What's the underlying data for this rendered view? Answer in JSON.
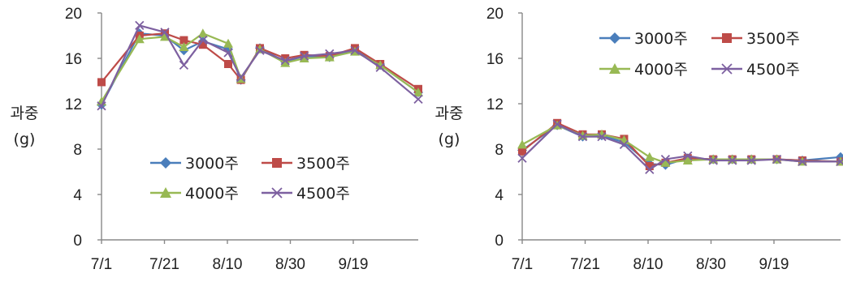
{
  "chart_data": [
    {
      "type": "line",
      "ylabel": [
        "과중",
        "(g)"
      ],
      "x_ticks": [
        "7/1",
        "7/21",
        "8/10",
        "8/30",
        "9/19"
      ],
      "xlim": [
        0,
        100
      ],
      "ylim": [
        0,
        20
      ],
      "yticks": [
        0,
        4,
        8,
        12,
        16,
        20
      ],
      "legend_position": "bottom-center",
      "x": [
        0,
        12,
        20,
        26,
        32,
        40,
        44,
        50,
        58,
        64,
        72,
        80,
        88,
        100
      ],
      "series": [
        {
          "name": "3000주",
          "color": "#4a7ebb",
          "marker": "diamond",
          "values": [
            11.9,
            18.2,
            18.0,
            16.7,
            17.5,
            16.8,
            14.1,
            16.9,
            15.7,
            16.2,
            16.1,
            16.7,
            15.4,
            13.0
          ]
        },
        {
          "name": "3500주",
          "color": "#be4b48",
          "marker": "square",
          "values": [
            13.9,
            18.0,
            18.2,
            17.6,
            17.2,
            15.5,
            14.1,
            16.9,
            16.0,
            16.3,
            16.2,
            16.9,
            15.5,
            13.3
          ]
        },
        {
          "name": "4000주",
          "color": "#98b954",
          "marker": "triangle",
          "values": [
            12.2,
            17.7,
            17.9,
            17.0,
            18.2,
            17.3,
            14.2,
            16.8,
            15.6,
            16.0,
            16.1,
            16.6,
            15.4,
            13.0
          ]
        },
        {
          "name": "4500주",
          "color": "#7d60a0",
          "marker": "x",
          "values": [
            11.8,
            18.9,
            18.3,
            15.4,
            17.6,
            16.5,
            14.3,
            16.7,
            15.8,
            16.2,
            16.4,
            16.7,
            15.2,
            12.4
          ]
        }
      ]
    },
    {
      "type": "line",
      "ylabel": [
        "과중",
        "(g)"
      ],
      "x_ticks": [
        "7/1",
        "7/21",
        "8/10",
        "8/30",
        "9/19"
      ],
      "xlim": [
        0,
        100
      ],
      "ylim": [
        0,
        20
      ],
      "yticks": [
        0,
        4,
        8,
        12,
        16,
        20
      ],
      "legend_position": "top-right",
      "x": [
        0,
        11,
        19,
        25,
        32,
        40,
        45,
        52,
        60,
        66,
        72,
        80,
        88,
        100
      ],
      "series": [
        {
          "name": "3000주",
          "color": "#4a7ebb",
          "marker": "diamond",
          "values": [
            7.9,
            10.1,
            9.1,
            9.2,
            8.6,
            6.7,
            6.6,
            7.2,
            7.1,
            7.1,
            7.1,
            7.1,
            7.0,
            7.3
          ]
        },
        {
          "name": "3500주",
          "color": "#be4b48",
          "marker": "square",
          "values": [
            7.8,
            10.3,
            9.3,
            9.3,
            8.9,
            6.5,
            6.8,
            7.2,
            7.1,
            7.1,
            7.1,
            7.1,
            7.0,
            6.9
          ]
        },
        {
          "name": "4000주",
          "color": "#98b954",
          "marker": "triangle",
          "values": [
            8.4,
            10.1,
            9.2,
            9.3,
            8.8,
            7.3,
            6.8,
            7.0,
            7.1,
            7.1,
            7.1,
            7.1,
            6.9,
            6.9
          ]
        },
        {
          "name": "4500주",
          "color": "#7d60a0",
          "marker": "x",
          "values": [
            7.2,
            10.2,
            9.1,
            9.1,
            8.4,
            6.2,
            7.1,
            7.4,
            7.0,
            7.0,
            7.0,
            7.1,
            6.9,
            6.9
          ]
        }
      ]
    }
  ]
}
